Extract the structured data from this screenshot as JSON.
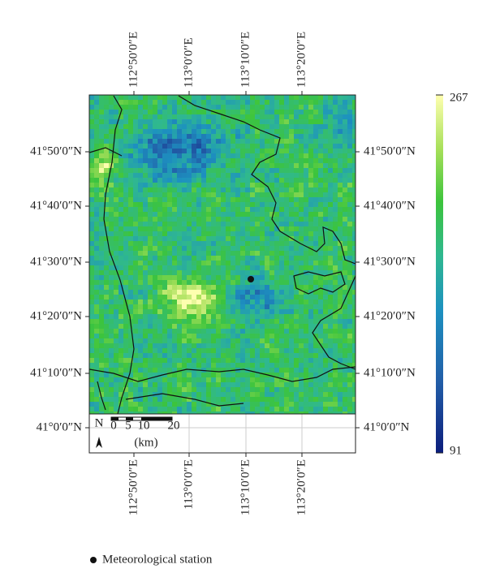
{
  "map": {
    "longitude_labels": [
      "112°50′0″E",
      "113°0′0″E",
      "113°10′0″E",
      "113°20′0″E"
    ],
    "latitude_labels": [
      "41°50′0″N",
      "41°40′0″N",
      "41°30′0″N",
      "41°20′0″N",
      "41°10′0″N",
      "41°0′0″N"
    ],
    "colorbar": {
      "max": 267,
      "min": 91
    },
    "scale_bar": {
      "ticks": [
        "0",
        "5",
        "10",
        "20"
      ],
      "unit": "(km)"
    },
    "north_arrow": "N",
    "legend": {
      "label": "Meteorological station"
    }
  }
}
